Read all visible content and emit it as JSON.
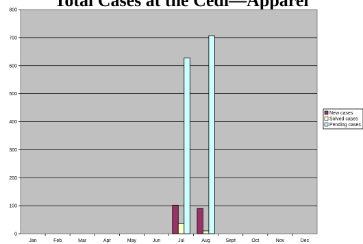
{
  "chart_data": {
    "type": "bar",
    "title": "Total Cases at the Cedi—Apparel",
    "xlabel": "",
    "ylabel": "",
    "categories": [
      "Jan",
      "Feb",
      "Mar",
      "Apr",
      "May",
      "Jun",
      "Jul",
      "Aug",
      "Sept",
      "Oct",
      "Nov",
      "Dec"
    ],
    "ylim": [
      0,
      800
    ],
    "yticks": [
      0,
      100,
      200,
      300,
      400,
      500,
      600,
      700,
      800
    ],
    "grid": true,
    "legend_position": "right",
    "series": [
      {
        "name": "New cases",
        "color": "#993366",
        "values": [
          0,
          0,
          0,
          0,
          0,
          0,
          102,
          90,
          0,
          0,
          0,
          0
        ]
      },
      {
        "name": "Solved cases",
        "color": "#ffffcc",
        "values": [
          0,
          0,
          0,
          0,
          0,
          0,
          36,
          10,
          0,
          0,
          0,
          0
        ]
      },
      {
        "name": "Pending cases",
        "color": "#ccffff",
        "values": [
          0,
          0,
          0,
          0,
          0,
          0,
          627,
          707,
          0,
          0,
          0,
          0
        ]
      }
    ],
    "plot_background": "#c0c0c0"
  }
}
